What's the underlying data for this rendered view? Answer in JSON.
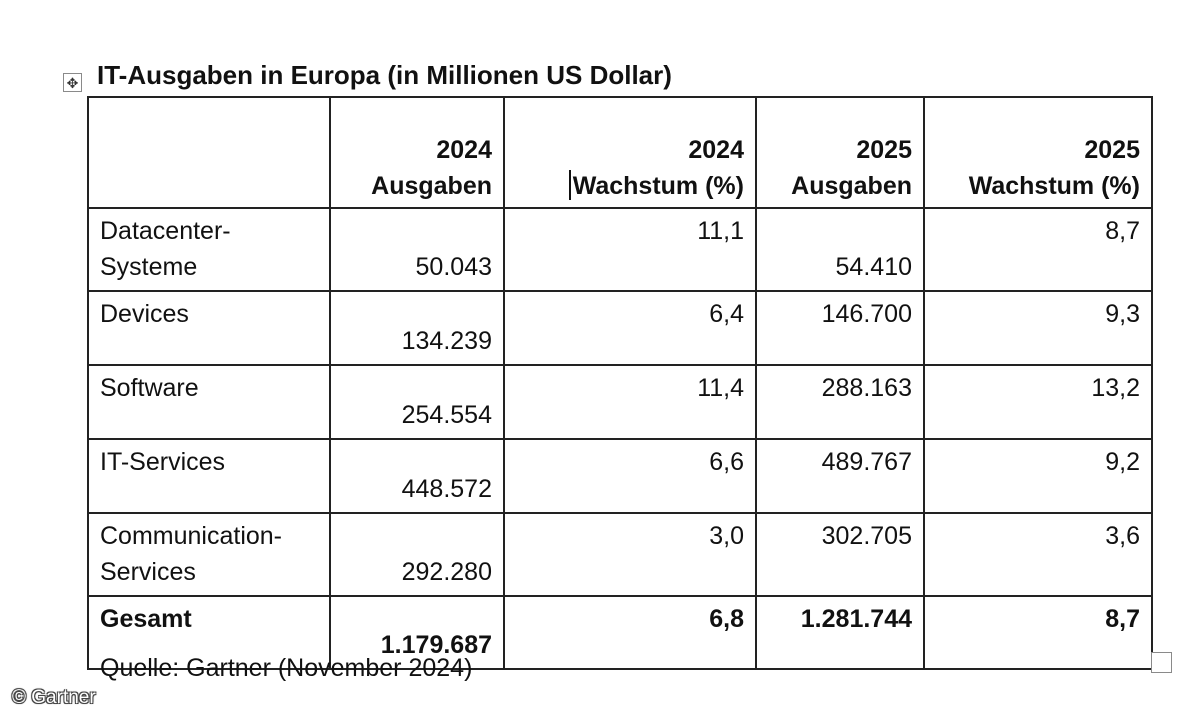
{
  "title": "IT-Ausgaben in Europa (in Millionen US Dollar)",
  "icons": {
    "move_handle": "move-arrows-icon",
    "resize_handle": "resize-square-icon"
  },
  "table": {
    "headers": [
      {
        "line1": "",
        "line2": ""
      },
      {
        "line1": "2024",
        "line2": "Ausgaben"
      },
      {
        "line1": "2024",
        "line2": "Wachstum (%)"
      },
      {
        "line1": "2025",
        "line2": "Ausgaben"
      },
      {
        "line1": "2025",
        "line2": "Wachstum (%)"
      }
    ],
    "rows": [
      {
        "label": "Datacenter-Systeme",
        "label_line1": "Datacenter-",
        "label_line2": "Systeme",
        "ausgaben_2024": "50.043",
        "wachstum_2024": "11,1",
        "ausgaben_2025": "54.410",
        "wachstum_2025": "8,7"
      },
      {
        "label": "Devices",
        "ausgaben_2024": "134.239",
        "wachstum_2024": "6,4",
        "ausgaben_2025": "146.700",
        "wachstum_2025": "9,3"
      },
      {
        "label": "Software",
        "ausgaben_2024": "254.554",
        "wachstum_2024": "11,4",
        "ausgaben_2025": "288.163",
        "wachstum_2025": "13,2"
      },
      {
        "label": "IT-Services",
        "ausgaben_2024": "448.572",
        "wachstum_2024": "6,6",
        "ausgaben_2025": "489.767",
        "wachstum_2025": "9,2"
      },
      {
        "label": "Communication-Services",
        "label_line1": "Communication-",
        "label_line2": "Services",
        "ausgaben_2024": "292.280",
        "wachstum_2024": "3,0",
        "ausgaben_2025": "302.705",
        "wachstum_2025": "3,6"
      }
    ],
    "total": {
      "label": "Gesamt",
      "ausgaben_2024": "1.179.687",
      "wachstum_2024": "6,8",
      "ausgaben_2025": "1.281.744",
      "wachstum_2025": "8,7"
    }
  },
  "source": "Quelle: Gartner (November 2024)",
  "watermark": "© Gartner"
}
